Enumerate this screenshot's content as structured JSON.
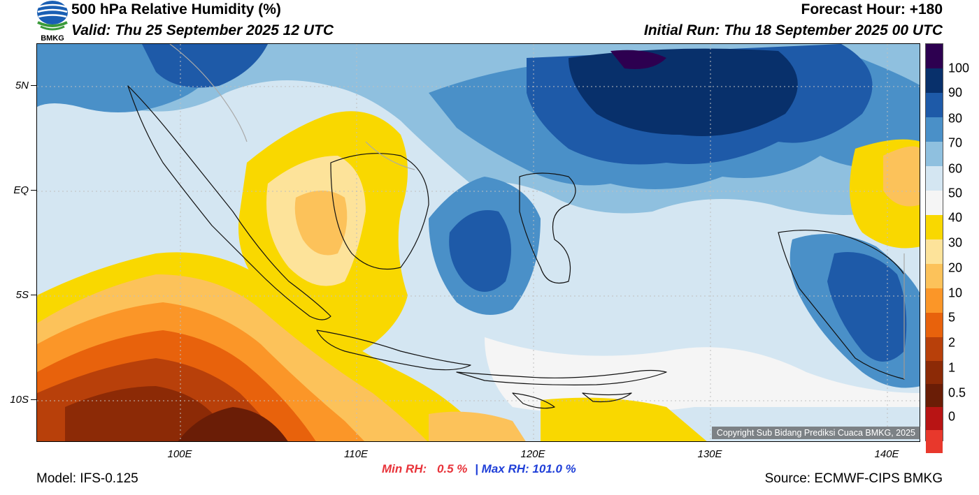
{
  "header": {
    "title": "500 hPa Relative Humidity (%)",
    "valid": "Valid: Thu 25 September 2025 12 UTC",
    "forecast_hour": "Forecast Hour: +180",
    "initial_run": "Initial Run: Thu 18 September 2025 00 UTC",
    "logo_text": "BMKG"
  },
  "map": {
    "lat_labels": [
      "5N",
      "EQ",
      "5S",
      "10S"
    ],
    "lon_labels": [
      "100E",
      "110E",
      "120E",
      "130E",
      "140E"
    ],
    "copyright": "Copyright Sub Bidang Prediksi Cuaca BMKG, 2025"
  },
  "colorbar": {
    "labels": [
      "100",
      "90",
      "80",
      "70",
      "60",
      "50",
      "40",
      "30",
      "20",
      "10",
      "5",
      "2",
      "1",
      "0.5",
      "0"
    ],
    "colors": [
      "#2d0050",
      "#08306b",
      "#1e5aa8",
      "#4a90c8",
      "#8fc0df",
      "#d4e6f2",
      "#f5f5f5",
      "#f9d800",
      "#fde39a",
      "#fcc25a",
      "#fb9628",
      "#e8620c",
      "#b8400a",
      "#8c2a06",
      "#6a1d06",
      "#b81414",
      "#e8382c"
    ]
  },
  "footer": {
    "min_rh_label": "Min RH:",
    "min_rh_value": "0.5 %",
    "separator": "|",
    "max_rh_label": "Max RH:",
    "max_rh_value": "101.0 %",
    "model": "Model: IFS-0.125",
    "source": "Source: ECMWF-CIPS BMKG"
  }
}
